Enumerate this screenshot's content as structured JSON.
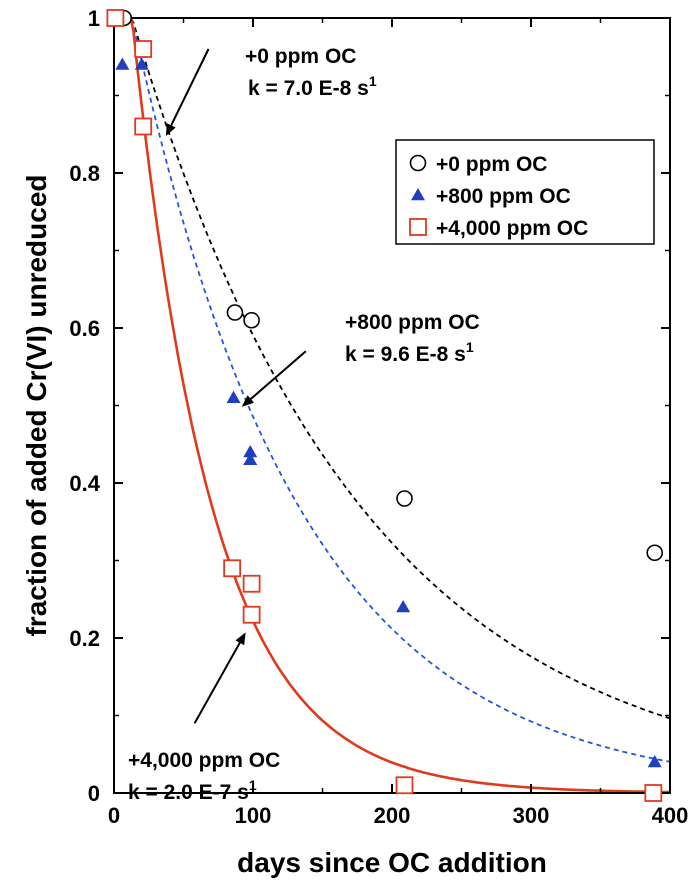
{
  "chart_data": {
    "type": "scatter",
    "xlabel": "days since OC addition",
    "ylabel": "fraction of added Cr(VI) unreduced",
    "xlim": [
      0,
      400
    ],
    "ylim": [
      0,
      1
    ],
    "xticks": [
      0,
      100,
      200,
      300,
      400
    ],
    "yticks": [
      0,
      0.2,
      0.4,
      0.6,
      0.8,
      1
    ],
    "xtick_labels": [
      "0",
      "100",
      "200",
      "300",
      "400"
    ],
    "ytick_labels": [
      "0",
      "0.2",
      "0.4",
      "0.6",
      "0.8",
      "1"
    ],
    "grid": false,
    "legend_position": "top-right",
    "series": [
      {
        "name": "+0 ppm OC",
        "marker": "circle",
        "color": "#000000",
        "x": [
          2,
          7,
          87,
          99,
          209,
          389
        ],
        "y": [
          1.0,
          1.0,
          0.62,
          0.61,
          0.38,
          0.31
        ]
      },
      {
        "name": "+800 ppm OC",
        "marker": "triangle",
        "color": "#1f3fbf",
        "x": [
          6,
          20,
          86,
          98,
          98,
          208,
          389
        ],
        "y": [
          0.94,
          0.94,
          0.51,
          0.44,
          0.43,
          0.24,
          0.04
        ]
      },
      {
        "name": "+4,000 ppm OC",
        "marker": "square",
        "color": "#e03a1e",
        "x": [
          1,
          21,
          21,
          85,
          99,
          99,
          209,
          388
        ],
        "y": [
          1.0,
          0.96,
          0.86,
          0.29,
          0.27,
          0.23,
          0.01,
          0.0
        ]
      }
    ],
    "fits": [
      {
        "series": "+0 ppm OC",
        "style": "dashed",
        "color": "#000000",
        "k_per_day": 0.00605,
        "lag_days": 13
      },
      {
        "series": "+800 ppm OC",
        "style": "dashed",
        "color": "#2255dd",
        "k_per_day": 0.0083,
        "lag_days": 13
      },
      {
        "series": "+4,000 ppm OC",
        "style": "solid",
        "color": "#e03a1e",
        "k_per_day": 0.0173,
        "lag_days": 13
      }
    ],
    "annotations": [
      {
        "line1": "+0 ppm OC",
        "line2": "k = 7.0 E-8 s",
        "sup": "1",
        "arrow_from": [
          68,
          0.96
        ],
        "arrow_to": [
          38,
          0.85
        ]
      },
      {
        "line1": "+800 ppm OC",
        "line2": "k = 9.6 E-8 s",
        "sup": "1",
        "arrow_from": [
          138,
          0.57
        ],
        "arrow_to": [
          93,
          0.5
        ]
      },
      {
        "line1": "+4,000 ppm OC",
        "line2": "k = 2.0 E-7 s",
        "sup": "1",
        "arrow_from": [
          58,
          0.09
        ],
        "arrow_to": [
          94,
          0.205
        ]
      }
    ]
  }
}
